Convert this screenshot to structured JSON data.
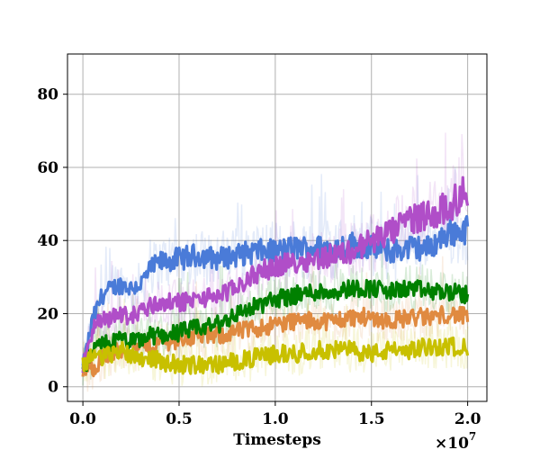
{
  "chart_data": {
    "type": "line",
    "title": "",
    "xlabel": "Timesteps",
    "ylabel": "",
    "x_multiplier_label": "×10",
    "x_multiplier_exponent": "7",
    "xlim": [
      -0.08,
      2.1
    ],
    "ylim": [
      -4,
      91
    ],
    "x_ticks": [
      0.0,
      0.5,
      1.0,
      1.5,
      2.0
    ],
    "x_tick_labels": [
      "0.0",
      "0.5",
      "1.0",
      "1.5",
      "2.0"
    ],
    "y_ticks": [
      0,
      20,
      40,
      60,
      80
    ],
    "y_tick_labels": [
      "0",
      "20",
      "40",
      "60",
      "80"
    ],
    "grid": true,
    "series": [
      {
        "color": "#4a7bd8",
        "x": [
          0.0,
          0.05,
          0.1,
          0.15,
          0.2,
          0.25,
          0.3,
          0.35,
          0.4,
          0.5,
          0.6,
          0.7,
          0.8,
          0.9,
          1.0,
          1.1,
          1.2,
          1.3,
          1.4,
          1.5,
          1.6,
          1.7,
          1.8,
          1.9,
          2.0
        ],
        "values": [
          5,
          18,
          25,
          27,
          28,
          27,
          28,
          32,
          34,
          35,
          36,
          35,
          36,
          37,
          37,
          38,
          38,
          38,
          39,
          38,
          37,
          38,
          38,
          42,
          43
        ]
      },
      {
        "color": "#e08a40",
        "x": [
          0.0,
          0.05,
          0.1,
          0.15,
          0.2,
          0.25,
          0.3,
          0.35,
          0.4,
          0.5,
          0.6,
          0.7,
          0.8,
          0.9,
          1.0,
          1.1,
          1.2,
          1.3,
          1.4,
          1.5,
          1.6,
          1.7,
          1.8,
          1.9,
          2.0
        ],
        "values": [
          4,
          5,
          8,
          9,
          10,
          10,
          11,
          11,
          12,
          13,
          14,
          14,
          15,
          16,
          17,
          18,
          18,
          18,
          19,
          19,
          18,
          19,
          19,
          20,
          19
        ]
      },
      {
        "color": "#008000",
        "x": [
          0.0,
          0.05,
          0.1,
          0.15,
          0.2,
          0.25,
          0.3,
          0.35,
          0.4,
          0.5,
          0.6,
          0.7,
          0.8,
          0.9,
          1.0,
          1.1,
          1.2,
          1.3,
          1.4,
          1.5,
          1.6,
          1.7,
          1.8,
          1.9,
          2.0
        ],
        "values": [
          5,
          9,
          12,
          12,
          13,
          12,
          13,
          14,
          14,
          15,
          16,
          17,
          20,
          22,
          24,
          25,
          26,
          26,
          27,
          27,
          26,
          27,
          26,
          26,
          25
        ]
      },
      {
        "color": "#b04ec8",
        "x": [
          0.0,
          0.05,
          0.1,
          0.15,
          0.2,
          0.25,
          0.3,
          0.35,
          0.4,
          0.5,
          0.6,
          0.7,
          0.8,
          0.9,
          1.0,
          1.1,
          1.2,
          1.3,
          1.4,
          1.5,
          1.6,
          1.7,
          1.8,
          1.9,
          2.0
        ],
        "values": [
          5,
          16,
          18,
          19,
          20,
          19,
          21,
          22,
          23,
          23,
          24,
          25,
          27,
          31,
          33,
          34,
          35,
          36,
          37,
          40,
          42,
          46,
          47,
          49,
          54
        ]
      },
      {
        "color": "#c8c000",
        "x": [
          0.0,
          0.05,
          0.1,
          0.15,
          0.2,
          0.25,
          0.3,
          0.35,
          0.4,
          0.5,
          0.6,
          0.7,
          0.8,
          0.9,
          1.0,
          1.1,
          1.2,
          1.3,
          1.4,
          1.5,
          1.6,
          1.7,
          1.8,
          1.9,
          2.0
        ],
        "values": [
          6,
          9,
          8,
          9,
          10,
          9,
          8,
          8,
          7,
          6,
          6,
          6,
          7,
          8,
          9,
          9,
          10,
          10,
          10,
          9,
          10,
          10,
          11,
          11,
          11
        ]
      }
    ]
  }
}
